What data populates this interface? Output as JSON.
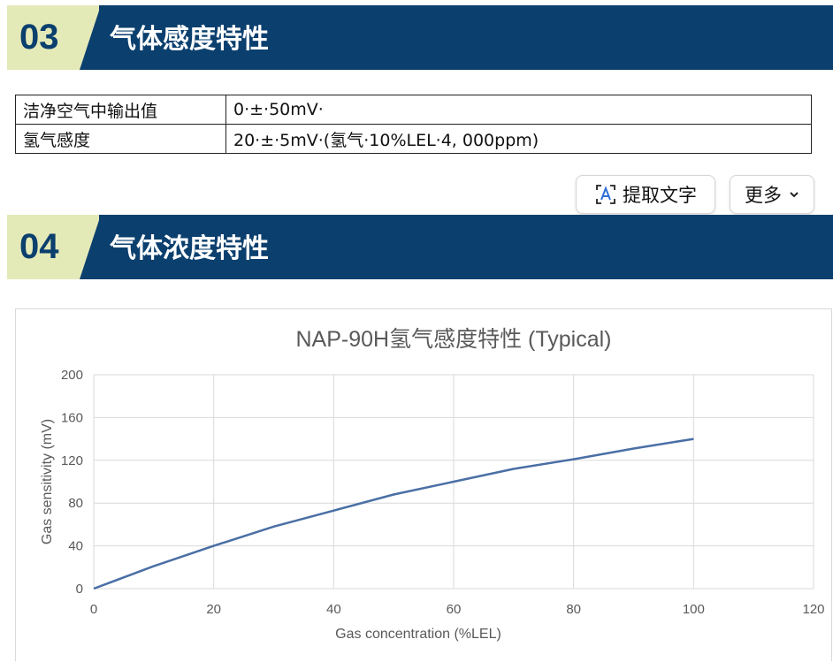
{
  "sections": [
    {
      "number": "03",
      "title": "气体感度特性"
    },
    {
      "number": "04",
      "title": "气体浓度特性"
    }
  ],
  "spec_table": {
    "rows": [
      {
        "label": "洁净空气中输出值",
        "value": "0·±·50mV·"
      },
      {
        "label": "氢气感度",
        "value": "20·±·5mV·(氢气·10%LEL·4, 000ppm)"
      }
    ]
  },
  "toolbar": {
    "extract_text_label": "提取文字",
    "more_label": "更多",
    "extract_icon": "text-recognition-icon",
    "more_icon": "chevron-down-icon"
  },
  "colors": {
    "header_band": "#0b3f6e",
    "header_accent": "#e4e9b8",
    "series_line": "#4a6fa5",
    "grid": "#d9d9d9"
  },
  "chart_data": {
    "type": "line",
    "title": "NAP-90H氢气感度特性 (Typical)",
    "xlabel": "Gas concentration (%LEL)",
    "ylabel": "Gas sensitivity (mV)",
    "xlim": [
      0,
      120
    ],
    "ylim": [
      0,
      200
    ],
    "xticks": [
      0,
      20,
      40,
      60,
      80,
      100,
      120
    ],
    "yticks": [
      0,
      40,
      80,
      120,
      160,
      200
    ],
    "grid": true,
    "legend": "none",
    "series": [
      {
        "x": [
          0,
          10,
          20,
          30,
          40,
          50,
          60,
          70,
          80,
          90,
          100
        ],
        "y": [
          0,
          21,
          40,
          58,
          73,
          88,
          100,
          112,
          121,
          131,
          140
        ]
      }
    ]
  }
}
